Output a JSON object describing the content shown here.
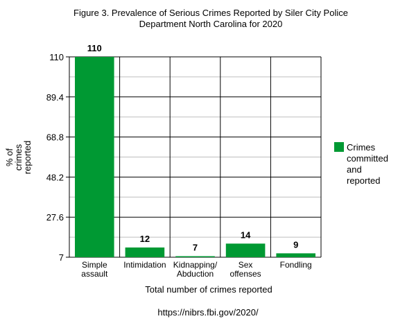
{
  "chart_data": {
    "type": "bar",
    "title_lines": [
      "Figure 3. Prevalence of Serious Crimes Reported by Siler City Police",
      "Department North Carolina for 2020"
    ],
    "categories": [
      [
        "Simple",
        "assault"
      ],
      [
        "Intimidation"
      ],
      [
        "Kidnapping/",
        "Abduction"
      ],
      [
        "Sex",
        "offenses"
      ],
      [
        "Fondling"
      ]
    ],
    "values": [
      110,
      12,
      7,
      14,
      9
    ],
    "data_labels": [
      "110",
      "12",
      "7",
      "14",
      "9"
    ],
    "ylim": [
      7,
      110
    ],
    "yticks": [
      "110",
      "89.4",
      "68.8",
      "48.2",
      "27.6",
      "7"
    ],
    "ylabel_lines": [
      "% of",
      "crimes",
      "reported"
    ],
    "xlabel": "Total number of crimes reported",
    "legend": {
      "position": "right",
      "label_lines": [
        "Crimes",
        "committed",
        "and",
        "reported"
      ]
    },
    "source": "https://nibrs.fbi.gov/2020/",
    "bar_color": "#009933",
    "grid": true
  }
}
